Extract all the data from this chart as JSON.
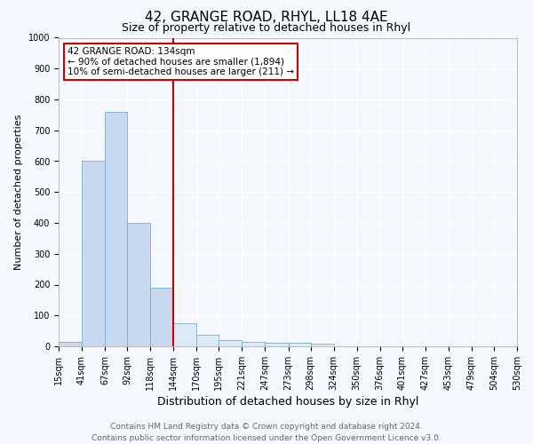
{
  "title": "42, GRANGE ROAD, RHYL, LL18 4AE",
  "subtitle": "Size of property relative to detached houses in Rhyl",
  "xlabel": "Distribution of detached houses by size in Rhyl",
  "ylabel": "Number of detached properties",
  "bin_labels": [
    "15sqm",
    "41sqm",
    "67sqm",
    "92sqm",
    "118sqm",
    "144sqm",
    "170sqm",
    "195sqm",
    "221sqm",
    "247sqm",
    "273sqm",
    "298sqm",
    "324sqm",
    "350sqm",
    "376sqm",
    "401sqm",
    "427sqm",
    "453sqm",
    "479sqm",
    "504sqm",
    "530sqm"
  ],
  "bar_values": [
    15,
    600,
    760,
    400,
    190,
    75,
    38,
    20,
    15,
    12,
    12,
    8,
    0,
    0,
    0,
    0,
    0,
    0,
    0,
    0
  ],
  "bar_color_left": "#c8d8ee",
  "bar_color_right": "#ddeaf8",
  "bar_edge_color": "#7aadd4",
  "vline_x_bin": 5,
  "vline_color": "#cc0000",
  "annotation_line1": "42 GRANGE ROAD: 134sqm",
  "annotation_line2": "← 90% of detached houses are smaller (1,894)",
  "annotation_line3": "10% of semi-detached houses are larger (211) →",
  "annotation_box_color": "#ffffff",
  "annotation_edge_color": "#cc0000",
  "ylim": [
    0,
    1000
  ],
  "yticks": [
    0,
    100,
    200,
    300,
    400,
    500,
    600,
    700,
    800,
    900,
    1000
  ],
  "footnote": "Contains HM Land Registry data © Crown copyright and database right 2024.\nContains public sector information licensed under the Open Government Licence v3.0.",
  "bg_color": "#f5f8ff",
  "plot_bg_color": "#f5f8ff",
  "grid_color": "#ffffff",
  "title_fontsize": 11,
  "subtitle_fontsize": 9,
  "xlabel_fontsize": 9,
  "ylabel_fontsize": 8,
  "tick_fontsize": 7,
  "annot_fontsize": 7.5,
  "footnote_fontsize": 6.5
}
